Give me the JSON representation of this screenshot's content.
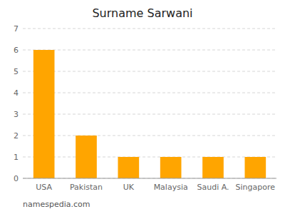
{
  "chart_data": {
    "type": "bar",
    "title": "Surname Sarwani",
    "categories": [
      "USA",
      "Pakistan",
      "UK",
      "Malaysia",
      "Saudi A.",
      "Singapore"
    ],
    "values": [
      6,
      2,
      1,
      1,
      1,
      1
    ],
    "color": "#FFA500",
    "ylim": [
      0,
      7
    ],
    "yticks": [
      0,
      1,
      2,
      3,
      4,
      5,
      6,
      7
    ],
    "grid": true,
    "annotations": [
      "namespedia.com"
    ]
  }
}
